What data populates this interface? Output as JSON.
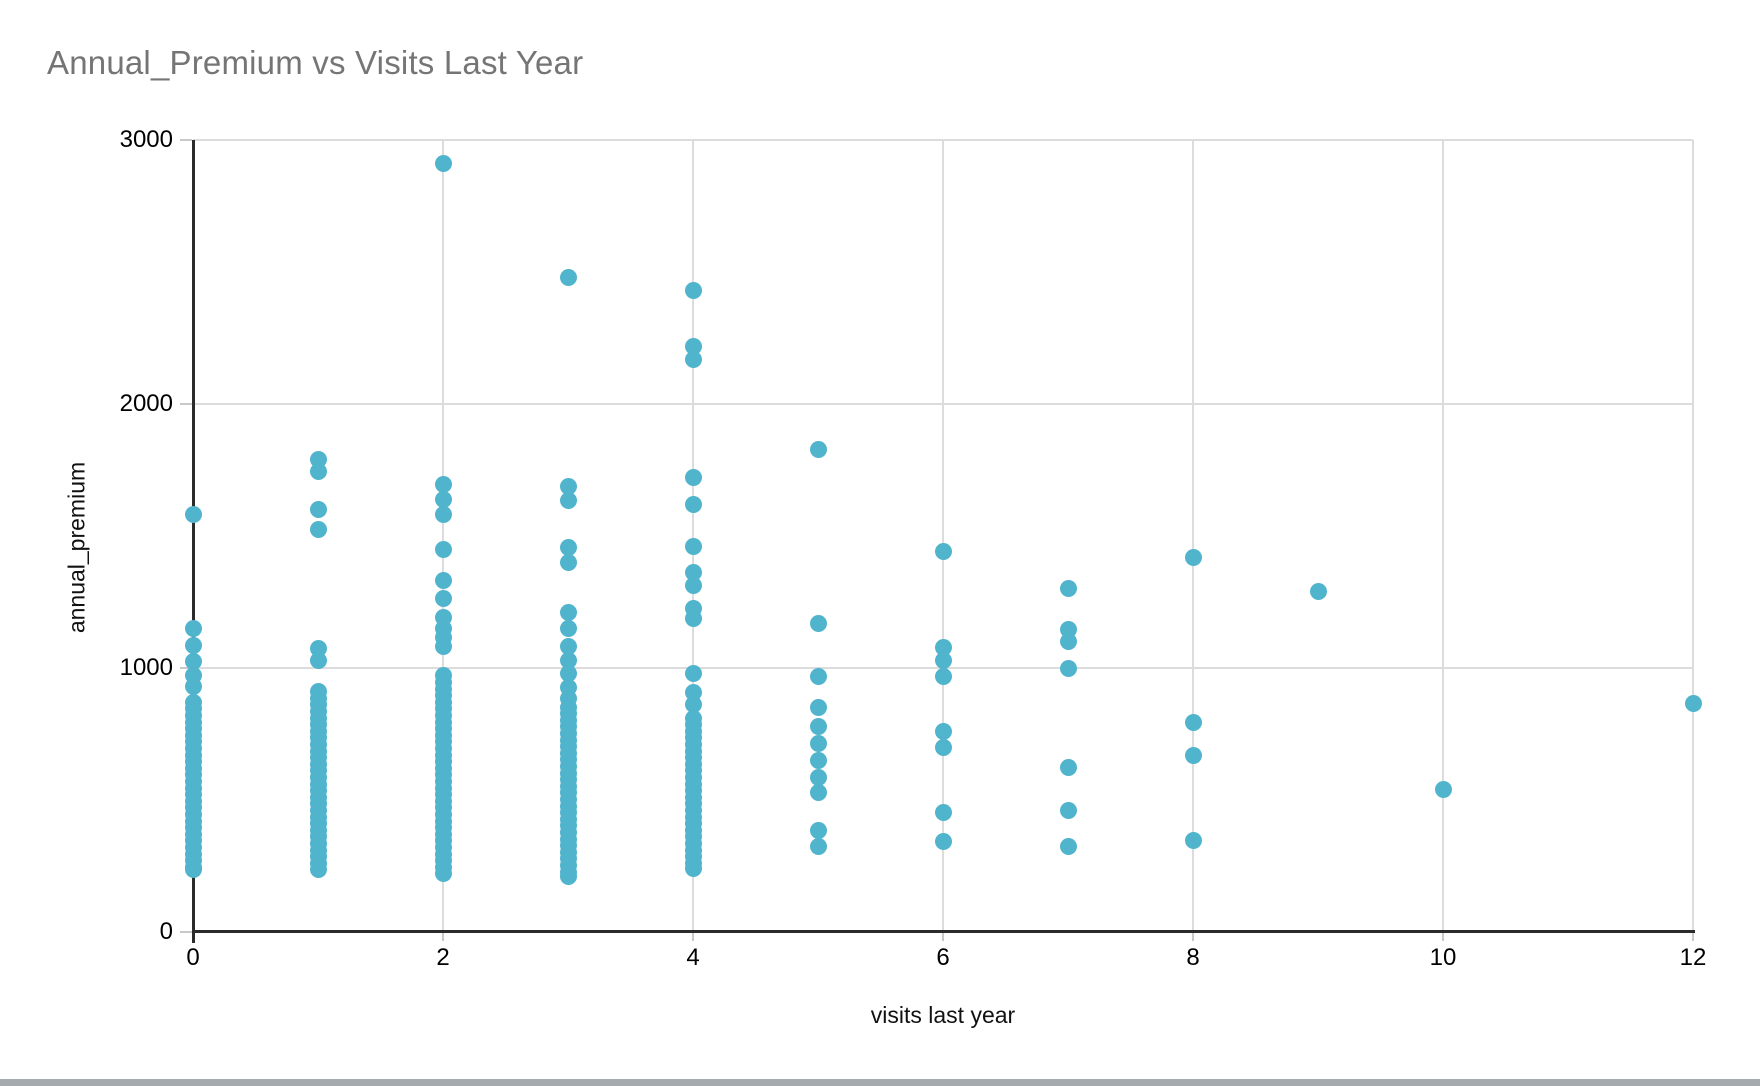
{
  "title": {
    "text": "Annual_Premium vs Visits Last Year"
  },
  "colors": {
    "point": "#50B4CD",
    "gridline": "#DCDCDC",
    "axis_line": "#2B2B2B",
    "title_text": "#757575",
    "tick_text": "#000000",
    "bottom_bar": "#A4AAAE",
    "background": "#FFFFFF"
  },
  "chart_data": {
    "type": "scatter",
    "title": "Annual_Premium vs Visits Last Year",
    "xlabel": "visits last year",
    "ylabel": "annual_premium",
    "xlim": [
      0,
      12
    ],
    "ylim": [
      0,
      3000
    ],
    "xticks": [
      0,
      2,
      4,
      6,
      8,
      10,
      12
    ],
    "yticks": [
      0,
      1000,
      2000,
      3000
    ],
    "grid": true,
    "legend": "none",
    "point_color": "#50B4CD",
    "groups": [
      {
        "x": 0,
        "y": [
          1580,
          1150,
          1085,
          1025,
          970,
          930,
          870,
          845,
          820,
          795,
          770,
          745,
          720,
          695,
          670,
          645,
          620,
          595,
          570,
          545,
          520,
          495,
          470,
          445,
          420,
          395,
          370,
          345,
          320,
          295,
          270,
          245,
          235
        ]
      },
      {
        "x": 1,
        "y": [
          1790,
          1745,
          1600,
          1525,
          1075,
          1030,
          910,
          885,
          860,
          835,
          810,
          785,
          760,
          735,
          710,
          685,
          660,
          635,
          610,
          585,
          560,
          535,
          510,
          485,
          460,
          435,
          410,
          385,
          360,
          335,
          310,
          285,
          260,
          235
        ]
      },
      {
        "x": 2,
        "y": [
          2910,
          1695,
          1640,
          1580,
          1447,
          1333,
          1265,
          1190,
          1150,
          1115,
          1080,
          970,
          945,
          920,
          895,
          870,
          845,
          820,
          795,
          770,
          745,
          720,
          695,
          670,
          645,
          620,
          595,
          570,
          545,
          520,
          495,
          470,
          445,
          420,
          395,
          370,
          345,
          320,
          295,
          270,
          245,
          220
        ]
      },
      {
        "x": 3,
        "y": [
          2480,
          1686,
          1636,
          1458,
          1400,
          1212,
          1148,
          1080,
          1027,
          981,
          928,
          886,
          852,
          827,
          802,
          777,
          752,
          727,
          702,
          677,
          652,
          627,
          602,
          577,
          552,
          527,
          502,
          477,
          452,
          427,
          402,
          377,
          352,
          327,
          302,
          277,
          252,
          227,
          210
        ]
      },
      {
        "x": 4,
        "y": [
          2430,
          2216,
          2170,
          1723,
          1621,
          1460,
          1360,
          1314,
          1227,
          1189,
          981,
          909,
          860,
          810,
          785,
          760,
          735,
          710,
          685,
          660,
          635,
          610,
          585,
          560,
          535,
          510,
          485,
          460,
          435,
          410,
          385,
          360,
          335,
          310,
          285,
          260,
          242
        ]
      },
      {
        "x": 5,
        "y": [
          1826,
          1170,
          966,
          850,
          780,
          715,
          650,
          585,
          530,
          386,
          322
        ]
      },
      {
        "x": 6,
        "y": [
          1440,
          1076,
          1027,
          966,
          758,
          697,
          451,
          341
        ]
      },
      {
        "x": 7,
        "y": [
          1300,
          1144,
          1102,
          1000,
          625,
          462,
          322
        ]
      },
      {
        "x": 8,
        "y": [
          1420,
          795,
          670,
          348
        ]
      },
      {
        "x": 9,
        "y": [
          1290
        ]
      },
      {
        "x": 10,
        "y": [
          538
        ]
      },
      {
        "x": 12,
        "y": [
          865
        ]
      }
    ]
  }
}
